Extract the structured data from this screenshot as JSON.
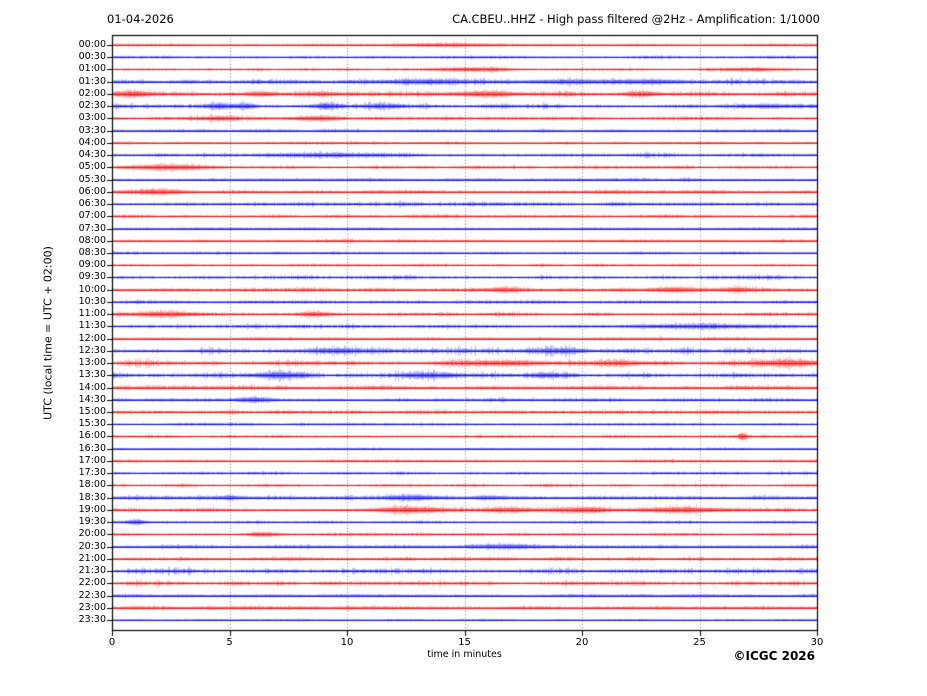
{
  "header": {
    "date": "01-04-2026",
    "title": "CA.CBEU..HHZ - High pass filtered @2Hz - Amplification: 1/1000"
  },
  "axes": {
    "y_label": "UTC (local time = UTC + 02:00)",
    "x_label": "time in minutes"
  },
  "footer": {
    "copyright": "©ICGC 2026"
  },
  "colors": {
    "trace_hour": "#ff0000",
    "trace_half_hour": "#0000ff",
    "grid": "#737373",
    "frame": "#000000",
    "text": "#000000"
  },
  "chart_data": {
    "type": "line",
    "subtype": "helicorder-seismogram",
    "station": "CA.CBEU..HHZ",
    "filter": "High pass filtered @2Hz",
    "amplification": "1/1000",
    "date": "01-04-2026",
    "x_unit": "minutes",
    "x_range": [
      0,
      30
    ],
    "x_ticks": [
      0,
      5,
      10,
      15,
      20,
      25,
      30
    ],
    "grid": "vertical dotted gridlines every 5 minutes",
    "row_interval_minutes": 30,
    "legend": "red = traces starting on the hour, blue = traces starting on the half hour; noise 0-3 relative background amplitude; events = [start_minute, width_minutes, relative_amplitude]",
    "rows": [
      {
        "label": "00:00",
        "color": "red",
        "noise": 1.0,
        "events": [
          [
            14.5,
            1.5,
            1.2
          ]
        ]
      },
      {
        "label": "00:30",
        "color": "blue",
        "noise": 1.0,
        "events": []
      },
      {
        "label": "01:00",
        "color": "red",
        "noise": 1.0,
        "events": [
          [
            15.5,
            1.0,
            1.5
          ],
          [
            27.0,
            0.8,
            1.2
          ]
        ]
      },
      {
        "label": "01:30",
        "color": "blue",
        "noise": 2.0,
        "events": [
          [
            13.5,
            1.2,
            1.5
          ],
          [
            19.5,
            1.5,
            1.2
          ],
          [
            23.0,
            1.0,
            1.2
          ]
        ]
      },
      {
        "label": "02:00",
        "color": "red",
        "noise": 2.0,
        "events": [
          [
            0.8,
            0.6,
            2.2
          ],
          [
            6.3,
            0.5,
            1.8
          ],
          [
            9.0,
            0.4,
            1.5
          ],
          [
            15.8,
            1.0,
            2.2
          ],
          [
            22.5,
            0.6,
            1.5
          ]
        ]
      },
      {
        "label": "02:30",
        "color": "blue",
        "noise": 1.8,
        "events": [
          [
            4.6,
            0.4,
            2.0
          ],
          [
            5.7,
            0.3,
            1.8
          ],
          [
            9.2,
            0.4,
            1.8
          ],
          [
            11.5,
            0.5,
            1.6
          ],
          [
            28.0,
            0.8,
            1.2
          ]
        ]
      },
      {
        "label": "03:00",
        "color": "red",
        "noise": 1.4,
        "events": [
          [
            4.7,
            0.5,
            1.4
          ],
          [
            8.8,
            0.8,
            1.6
          ]
        ]
      },
      {
        "label": "03:30",
        "color": "blue",
        "noise": 1.0,
        "events": []
      },
      {
        "label": "04:00",
        "color": "red",
        "noise": 1.0,
        "events": []
      },
      {
        "label": "04:30",
        "color": "blue",
        "noise": 1.6,
        "events": [
          [
            9.5,
            2.0,
            1.0
          ]
        ]
      },
      {
        "label": "05:00",
        "color": "red",
        "noise": 1.4,
        "events": [
          [
            2.3,
            1.2,
            1.8
          ]
        ]
      },
      {
        "label": "05:30",
        "color": "blue",
        "noise": 1.0,
        "events": []
      },
      {
        "label": "06:00",
        "color": "red",
        "noise": 1.4,
        "events": [
          [
            2.0,
            0.8,
            1.8
          ]
        ]
      },
      {
        "label": "06:30",
        "color": "blue",
        "noise": 1.6,
        "events": []
      },
      {
        "label": "07:00",
        "color": "red",
        "noise": 1.2,
        "events": []
      },
      {
        "label": "07:30",
        "color": "blue",
        "noise": 0.7,
        "events": []
      },
      {
        "label": "08:00",
        "color": "red",
        "noise": 1.1,
        "events": []
      },
      {
        "label": "08:30",
        "color": "blue",
        "noise": 1.0,
        "events": []
      },
      {
        "label": "09:00",
        "color": "red",
        "noise": 1.1,
        "events": []
      },
      {
        "label": "09:30",
        "color": "blue",
        "noise": 1.5,
        "events": []
      },
      {
        "label": "10:00",
        "color": "red",
        "noise": 1.5,
        "events": [
          [
            16.6,
            0.5,
            1.8
          ],
          [
            24.0,
            0.8,
            1.6
          ],
          [
            26.5,
            0.5,
            1.4
          ]
        ]
      },
      {
        "label": "10:30",
        "color": "blue",
        "noise": 1.2,
        "events": []
      },
      {
        "label": "11:00",
        "color": "red",
        "noise": 1.5,
        "events": [
          [
            2.2,
            1.0,
            1.8
          ],
          [
            8.6,
            0.4,
            1.4
          ]
        ]
      },
      {
        "label": "11:30",
        "color": "blue",
        "noise": 1.5,
        "events": [
          [
            25.0,
            2.5,
            1.2
          ]
        ]
      },
      {
        "label": "12:00",
        "color": "red",
        "noise": 1.1,
        "events": []
      },
      {
        "label": "12:30",
        "color": "blue",
        "noise": 2.3,
        "events": [
          [
            9.7,
            1.0,
            1.5
          ],
          [
            19.0,
            0.8,
            1.4
          ]
        ]
      },
      {
        "label": "13:00",
        "color": "red",
        "noise": 2.3,
        "events": [
          [
            16.5,
            1.2,
            1.6
          ],
          [
            21.5,
            0.8,
            1.5
          ],
          [
            28.8,
            1.2,
            1.8
          ]
        ]
      },
      {
        "label": "13:30",
        "color": "blue",
        "noise": 2.3,
        "events": [
          [
            7.0,
            0.8,
            1.8
          ],
          [
            13.8,
            1.0,
            1.5
          ],
          [
            18.5,
            0.6,
            1.4
          ]
        ]
      },
      {
        "label": "14:00",
        "color": "red",
        "noise": 1.5,
        "events": []
      },
      {
        "label": "14:30",
        "color": "blue",
        "noise": 1.3,
        "events": [
          [
            6.0,
            0.5,
            1.6
          ]
        ]
      },
      {
        "label": "15:00",
        "color": "red",
        "noise": 1.4,
        "events": []
      },
      {
        "label": "15:30",
        "color": "blue",
        "noise": 1.0,
        "events": []
      },
      {
        "label": "16:00",
        "color": "red",
        "noise": 1.0,
        "events": [
          [
            26.8,
            0.12,
            3.5
          ]
        ]
      },
      {
        "label": "16:30",
        "color": "blue",
        "noise": 0.7,
        "events": []
      },
      {
        "label": "17:00",
        "color": "red",
        "noise": 1.1,
        "events": []
      },
      {
        "label": "17:30",
        "color": "blue",
        "noise": 1.0,
        "events": []
      },
      {
        "label": "18:00",
        "color": "red",
        "noise": 1.1,
        "events": []
      },
      {
        "label": "18:30",
        "color": "blue",
        "noise": 1.4,
        "events": [
          [
            5.0,
            0.4,
            1.6
          ],
          [
            12.8,
            0.8,
            1.8
          ],
          [
            16.0,
            0.5,
            1.5
          ]
        ]
      },
      {
        "label": "19:00",
        "color": "red",
        "noise": 1.8,
        "events": [
          [
            12.5,
            1.0,
            2.0
          ],
          [
            16.8,
            0.6,
            1.6
          ],
          [
            20.0,
            0.8,
            1.8
          ],
          [
            24.0,
            1.2,
            1.8
          ]
        ]
      },
      {
        "label": "19:30",
        "color": "blue",
        "noise": 1.0,
        "events": [
          [
            1.0,
            0.3,
            2.0
          ]
        ]
      },
      {
        "label": "20:00",
        "color": "red",
        "noise": 1.1,
        "events": [
          [
            6.5,
            0.5,
            1.4
          ]
        ]
      },
      {
        "label": "20:30",
        "color": "blue",
        "noise": 1.3,
        "events": [
          [
            16.8,
            0.9,
            1.8
          ]
        ]
      },
      {
        "label": "21:00",
        "color": "red",
        "noise": 1.5,
        "events": []
      },
      {
        "label": "21:30",
        "color": "blue",
        "noise": 2.2,
        "events": []
      },
      {
        "label": "22:00",
        "color": "red",
        "noise": 1.8,
        "events": []
      },
      {
        "label": "22:30",
        "color": "blue",
        "noise": 1.0,
        "events": []
      },
      {
        "label": "23:00",
        "color": "red",
        "noise": 1.4,
        "events": []
      },
      {
        "label": "23:30",
        "color": "blue",
        "noise": 0.6,
        "events": []
      }
    ]
  }
}
